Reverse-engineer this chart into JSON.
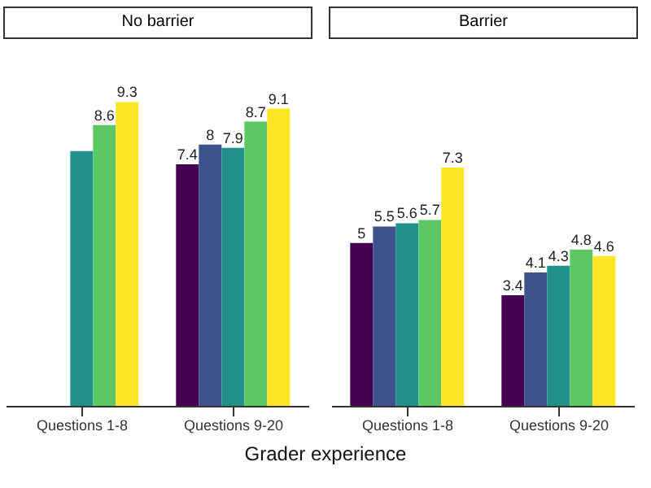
{
  "chart_data": [
    {
      "type": "bar",
      "title": "No barrier",
      "xlabel": "Grader experience",
      "categories": [
        "Questions 1-8",
        "Questions 9-20"
      ],
      "data_labels": true,
      "series": [
        {
          "color": "#440154",
          "values": [
            null,
            7.4
          ]
        },
        {
          "color": "#3b528b",
          "values": [
            null,
            8
          ]
        },
        {
          "color": "#21908c",
          "values": [
            7.8,
            7.9
          ],
          "value_labels": [
            null,
            "7.9"
          ]
        },
        {
          "color": "#5dc863",
          "values": [
            8.6,
            8.7
          ]
        },
        {
          "color": "#fde725",
          "values": [
            9.3,
            9.1
          ]
        }
      ]
    },
    {
      "type": "bar",
      "title": "Barrier",
      "categories": [
        "Questions 1-8",
        "Questions 9-20"
      ],
      "data_labels": true,
      "series": [
        {
          "color": "#440154",
          "values": [
            5,
            3.4
          ]
        },
        {
          "color": "#3b528b",
          "values": [
            5.5,
            4.1
          ]
        },
        {
          "color": "#21908c",
          "values": [
            5.6,
            4.3
          ]
        },
        {
          "color": "#5dc863",
          "values": [
            5.7,
            4.8
          ]
        },
        {
          "color": "#fde725",
          "values": [
            7.3,
            4.6
          ]
        }
      ]
    }
  ]
}
